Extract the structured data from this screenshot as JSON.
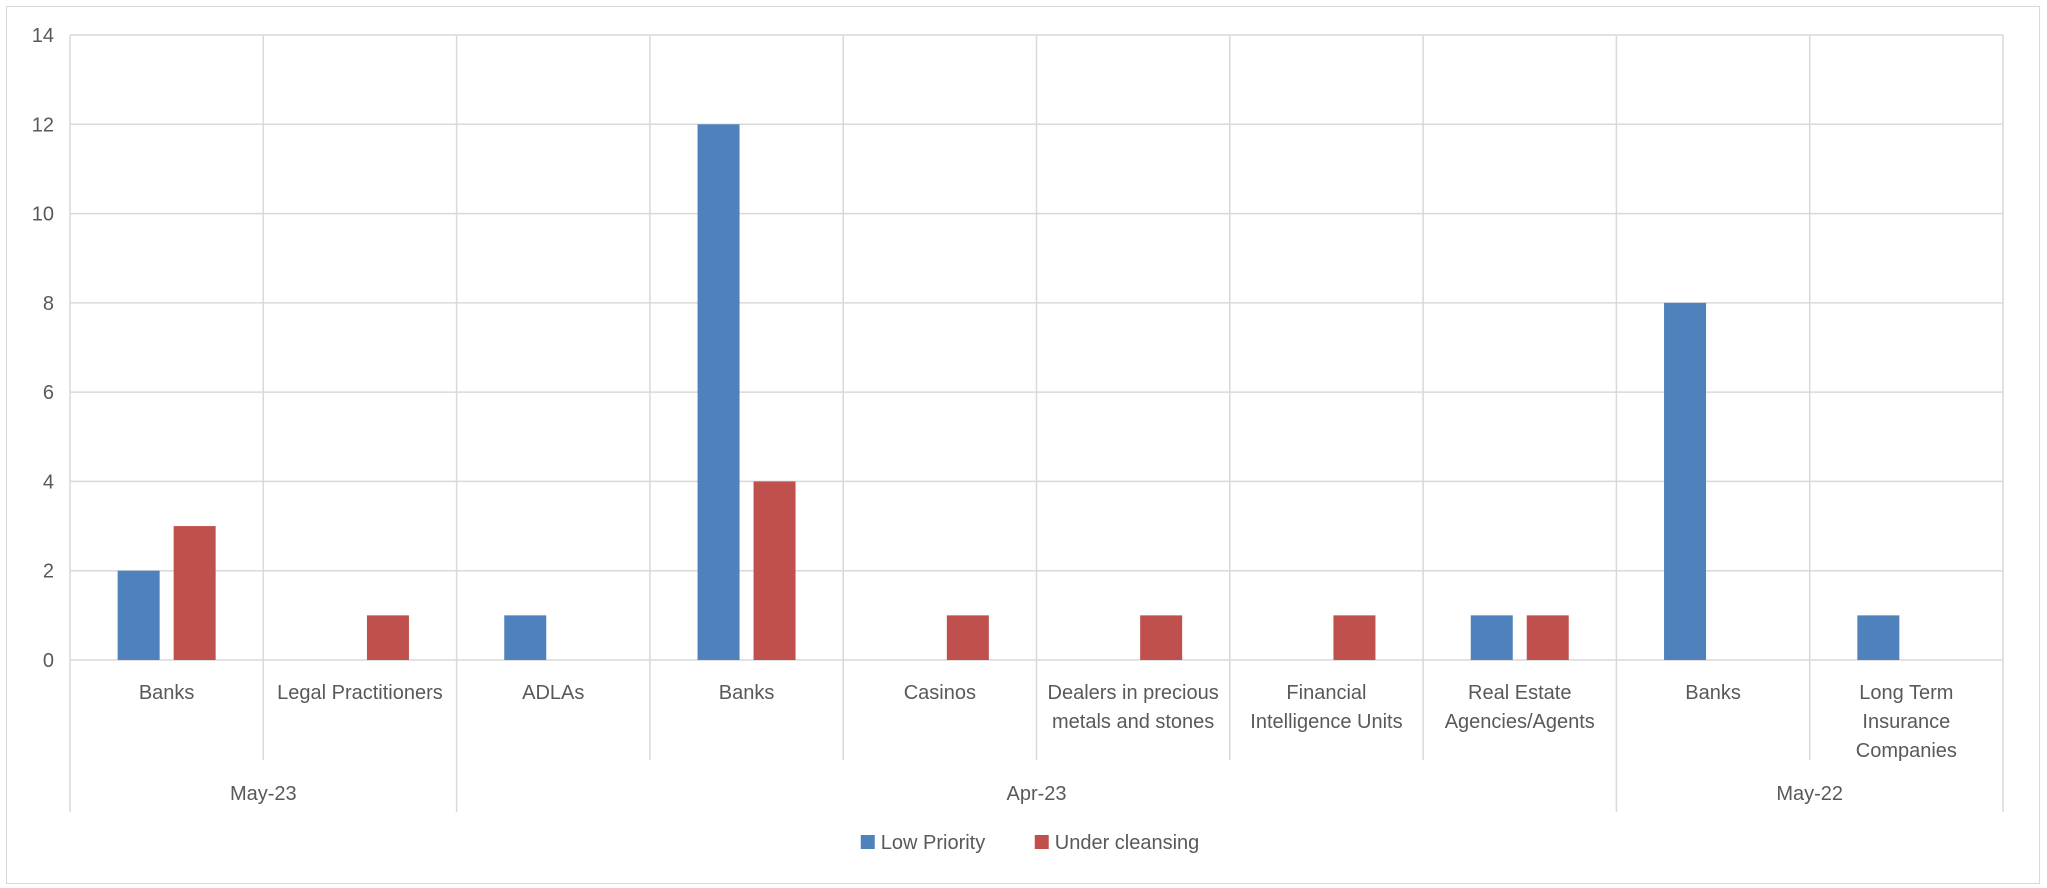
{
  "chart_data": {
    "type": "bar",
    "title": "",
    "xlabel": "",
    "ylabel": "",
    "ylim": [
      0,
      14
    ],
    "yticks": [
      0,
      2,
      4,
      6,
      8,
      10,
      12,
      14
    ],
    "grid": true,
    "legend_position": "bottom",
    "categories": [
      {
        "group": "May-23",
        "label": [
          "Banks"
        ]
      },
      {
        "group": "May-23",
        "label": [
          "Legal Practitioners"
        ]
      },
      {
        "group": "Apr-23",
        "label": [
          "ADLAs"
        ]
      },
      {
        "group": "Apr-23",
        "label": [
          "Banks"
        ]
      },
      {
        "group": "Apr-23",
        "label": [
          "Casinos"
        ]
      },
      {
        "group": "Apr-23",
        "label": [
          "Dealers in precious",
          "metals and stones"
        ]
      },
      {
        "group": "Apr-23",
        "label": [
          "Financial",
          "Intelligence Units"
        ]
      },
      {
        "group": "Apr-23",
        "label": [
          "Real Estate",
          "Agencies/Agents"
        ]
      },
      {
        "group": "May-22",
        "label": [
          "Banks"
        ]
      },
      {
        "group": "May-22",
        "label": [
          "Long Term",
          "Insurance",
          "Companies"
        ]
      }
    ],
    "groups": [
      "May-23",
      "Apr-23",
      "May-22"
    ],
    "series": [
      {
        "name": "Low Priority",
        "color": "#4f81bd",
        "values": [
          2,
          0,
          1,
          12,
          0,
          0,
          0,
          1,
          8,
          1
        ]
      },
      {
        "name": "Under cleansing",
        "color": "#c0504d",
        "values": [
          3,
          1,
          0,
          4,
          1,
          1,
          1,
          1,
          0,
          0
        ]
      }
    ]
  }
}
